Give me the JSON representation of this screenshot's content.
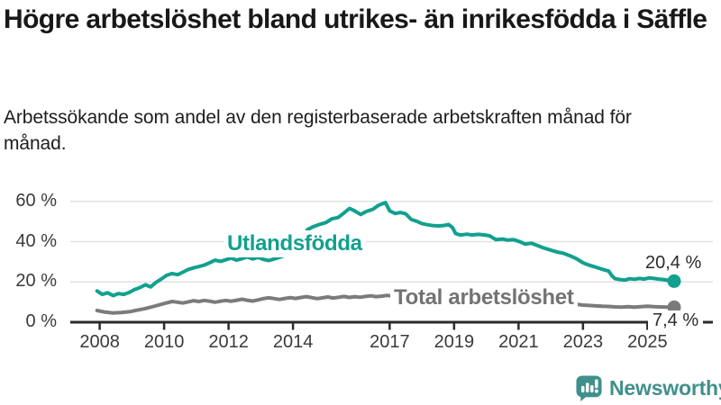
{
  "header": {
    "title": "Högre arbetslöshet bland utrikes- än inrikesfödda i Säffle",
    "subtitle": "Arbetssökande som andel av den registerbaserade arbetskraften månad för månad."
  },
  "footer": {
    "brand": "Newsworthy",
    "logo_icon": "speech-bubble-bar-chart"
  },
  "colors": {
    "accent_teal": "#12a08f",
    "series_gray": "#7b7b7b",
    "label_gray": "#737373",
    "logo_teal": "#3f908c",
    "grid": "#e2e2e2",
    "axis": "#2b2b2b",
    "text": "#181818"
  },
  "chart_data": {
    "type": "line",
    "title": "Högre arbetslöshet bland utrikes- än inrikesfödda i Säffle",
    "subtitle": "Arbetssökande som andel av den registerbaserade arbetskraften månad för månad.",
    "xlabel": "",
    "ylabel": "",
    "grid": true,
    "legend_position": "inline-labels",
    "xlim": [
      2007.8,
      2026.1
    ],
    "ylim": [
      0,
      63
    ],
    "x_ticks": [
      2008,
      2010,
      2012,
      2014,
      2017,
      2019,
      2021,
      2023,
      2025
    ],
    "x_tick_labels": [
      "2008",
      "2010",
      "2012",
      "2014",
      "2017",
      "2019",
      "2021",
      "2023",
      "2025"
    ],
    "y_ticks": [
      0,
      20,
      40,
      60
    ],
    "y_tick_labels": [
      "0 %",
      "20 %",
      "40 %",
      "60 %"
    ],
    "grid_color": "#e2e2e2",
    "axis_color": "#2b2b2b",
    "series": [
      {
        "name": "Utlandsfödda",
        "color": "#12a08f",
        "end_value": 20.4,
        "end_label": "20,4 %",
        "points": [
          [
            2007.92,
            15.5
          ],
          [
            2008.08,
            13.8
          ],
          [
            2008.25,
            14.6
          ],
          [
            2008.42,
            13.2
          ],
          [
            2008.58,
            14.2
          ],
          [
            2008.75,
            13.8
          ],
          [
            2008.92,
            14.8
          ],
          [
            2009.08,
            16.2
          ],
          [
            2009.25,
            17.2
          ],
          [
            2009.42,
            18.6
          ],
          [
            2009.58,
            17.5
          ],
          [
            2009.75,
            19.8
          ],
          [
            2009.92,
            21.5
          ],
          [
            2010.08,
            23.3
          ],
          [
            2010.25,
            24.2
          ],
          [
            2010.42,
            23.6
          ],
          [
            2010.58,
            24.8
          ],
          [
            2010.75,
            26.2
          ],
          [
            2010.92,
            27.0
          ],
          [
            2011.08,
            27.6
          ],
          [
            2011.25,
            28.4
          ],
          [
            2011.42,
            29.6
          ],
          [
            2011.58,
            30.8
          ],
          [
            2011.75,
            30.2
          ],
          [
            2011.92,
            31.0
          ],
          [
            2012.08,
            31.8
          ],
          [
            2012.25,
            30.8
          ],
          [
            2012.42,
            31.6
          ],
          [
            2012.58,
            32.4
          ],
          [
            2012.75,
            31.4
          ],
          [
            2012.92,
            32.2
          ],
          [
            2013.08,
            31.2
          ],
          [
            2013.25,
            30.6
          ],
          [
            2013.42,
            31.4
          ],
          [
            2013.58,
            32.2
          ],
          [
            2013.75,
            33.2
          ],
          [
            2013.92,
            34.2
          ],
          [
            2014.08,
            36.0
          ],
          [
            2014.25,
            40.0
          ],
          [
            2014.45,
            46.0
          ],
          [
            2014.64,
            47.5
          ],
          [
            2014.83,
            48.6
          ],
          [
            2015.03,
            49.5
          ],
          [
            2015.2,
            51.3
          ],
          [
            2015.4,
            52.0
          ],
          [
            2015.58,
            54.2
          ],
          [
            2015.75,
            56.5
          ],
          [
            2015.9,
            55.4
          ],
          [
            2016.1,
            53.5
          ],
          [
            2016.28,
            55.0
          ],
          [
            2016.47,
            56.0
          ],
          [
            2016.65,
            58.0
          ],
          [
            2016.87,
            59.4
          ],
          [
            2017.0,
            55.3
          ],
          [
            2017.17,
            54.0
          ],
          [
            2017.33,
            54.5
          ],
          [
            2017.5,
            53.8
          ],
          [
            2017.67,
            51.0
          ],
          [
            2017.83,
            50.2
          ],
          [
            2018.0,
            49.0
          ],
          [
            2018.17,
            48.4
          ],
          [
            2018.33,
            48.0
          ],
          [
            2018.5,
            47.8
          ],
          [
            2018.67,
            48.0
          ],
          [
            2018.83,
            48.5
          ],
          [
            2018.95,
            47.0
          ],
          [
            2019.05,
            44.0
          ],
          [
            2019.2,
            43.3
          ],
          [
            2019.4,
            43.7
          ],
          [
            2019.55,
            43.3
          ],
          [
            2019.75,
            43.6
          ],
          [
            2019.95,
            43.3
          ],
          [
            2020.1,
            42.9
          ],
          [
            2020.3,
            41.0
          ],
          [
            2020.5,
            41.3
          ],
          [
            2020.65,
            40.8
          ],
          [
            2020.85,
            41.0
          ],
          [
            2021.05,
            39.9
          ],
          [
            2021.2,
            38.8
          ],
          [
            2021.4,
            39.2
          ],
          [
            2021.6,
            38.0
          ],
          [
            2021.8,
            36.8
          ],
          [
            2022.0,
            35.8
          ],
          [
            2022.2,
            34.8
          ],
          [
            2022.4,
            34.2
          ],
          [
            2022.6,
            33.0
          ],
          [
            2022.8,
            31.5
          ],
          [
            2023.0,
            29.5
          ],
          [
            2023.2,
            28.3
          ],
          [
            2023.4,
            27.3
          ],
          [
            2023.6,
            26.3
          ],
          [
            2023.8,
            25.4
          ],
          [
            2023.9,
            23.0
          ],
          [
            2024.0,
            21.6
          ],
          [
            2024.15,
            21.2
          ],
          [
            2024.3,
            20.9
          ],
          [
            2024.45,
            21.6
          ],
          [
            2024.6,
            21.3
          ],
          [
            2024.75,
            21.7
          ],
          [
            2024.9,
            21.4
          ],
          [
            2025.05,
            22.0
          ],
          [
            2025.2,
            21.7
          ],
          [
            2025.35,
            21.4
          ],
          [
            2025.5,
            21.2
          ],
          [
            2025.65,
            20.8
          ],
          [
            2025.83,
            20.4
          ]
        ]
      },
      {
        "name": "Total arbetslöshet",
        "color": "#7b7b7b",
        "end_value": 7.4,
        "end_label": "7,4 %",
        "points": [
          [
            2007.92,
            5.8
          ],
          [
            2008.17,
            5.0
          ],
          [
            2008.42,
            4.6
          ],
          [
            2008.67,
            4.8
          ],
          [
            2008.92,
            5.2
          ],
          [
            2009.17,
            6.0
          ],
          [
            2009.42,
            6.8
          ],
          [
            2009.67,
            7.8
          ],
          [
            2009.92,
            8.9
          ],
          [
            2010.08,
            9.6
          ],
          [
            2010.25,
            10.3
          ],
          [
            2010.42,
            9.9
          ],
          [
            2010.58,
            9.5
          ],
          [
            2010.75,
            10.1
          ],
          [
            2010.92,
            10.7
          ],
          [
            2011.08,
            10.3
          ],
          [
            2011.25,
            10.8
          ],
          [
            2011.42,
            10.4
          ],
          [
            2011.58,
            9.9
          ],
          [
            2011.75,
            10.4
          ],
          [
            2011.92,
            10.8
          ],
          [
            2012.08,
            10.4
          ],
          [
            2012.25,
            10.9
          ],
          [
            2012.42,
            11.4
          ],
          [
            2012.58,
            10.9
          ],
          [
            2012.75,
            10.5
          ],
          [
            2012.92,
            11.1
          ],
          [
            2013.08,
            11.7
          ],
          [
            2013.25,
            12.1
          ],
          [
            2013.42,
            11.7
          ],
          [
            2013.58,
            11.3
          ],
          [
            2013.75,
            11.8
          ],
          [
            2013.92,
            12.2
          ],
          [
            2014.08,
            11.8
          ],
          [
            2014.25,
            12.3
          ],
          [
            2014.42,
            12.7
          ],
          [
            2014.58,
            12.2
          ],
          [
            2014.75,
            11.7
          ],
          [
            2014.92,
            12.1
          ],
          [
            2015.08,
            12.5
          ],
          [
            2015.25,
            12.0
          ],
          [
            2015.42,
            12.4
          ],
          [
            2015.58,
            12.8
          ],
          [
            2015.75,
            12.3
          ],
          [
            2015.92,
            12.7
          ],
          [
            2016.08,
            12.4
          ],
          [
            2016.25,
            12.8
          ],
          [
            2016.42,
            13.1
          ],
          [
            2016.58,
            12.7
          ],
          [
            2016.75,
            12.9
          ],
          [
            2016.92,
            13.3
          ],
          [
            2017.08,
            12.9
          ],
          [
            2017.25,
            13.2
          ],
          [
            2017.5,
            12.8
          ],
          [
            2017.75,
            12.4
          ],
          [
            2018.0,
            12.6
          ],
          [
            2018.25,
            12.2
          ],
          [
            2018.5,
            11.8
          ],
          [
            2018.75,
            11.5
          ],
          [
            2019.0,
            11.7
          ],
          [
            2019.25,
            11.3
          ],
          [
            2019.5,
            10.9
          ],
          [
            2019.75,
            11.1
          ],
          [
            2020.0,
            10.9
          ],
          [
            2020.25,
            11.5
          ],
          [
            2020.5,
            11.8
          ],
          [
            2020.75,
            11.4
          ],
          [
            2021.0,
            11.1
          ],
          [
            2021.25,
            10.8
          ],
          [
            2021.5,
            10.5
          ],
          [
            2021.75,
            10.2
          ],
          [
            2022.0,
            9.9
          ],
          [
            2022.25,
            9.6
          ],
          [
            2022.45,
            9.4
          ],
          [
            2022.6,
            9.2
          ],
          [
            2022.8,
            8.9
          ],
          [
            2023.0,
            8.5
          ],
          [
            2023.2,
            8.3
          ],
          [
            2023.4,
            8.1
          ],
          [
            2023.6,
            7.9
          ],
          [
            2023.8,
            7.8
          ],
          [
            2024.0,
            7.6
          ],
          [
            2024.2,
            7.5
          ],
          [
            2024.4,
            7.7
          ],
          [
            2024.6,
            7.5
          ],
          [
            2024.8,
            7.7
          ],
          [
            2025.0,
            7.9
          ],
          [
            2025.2,
            7.7
          ],
          [
            2025.4,
            7.6
          ],
          [
            2025.6,
            7.5
          ],
          [
            2025.83,
            7.4
          ]
        ]
      }
    ]
  }
}
